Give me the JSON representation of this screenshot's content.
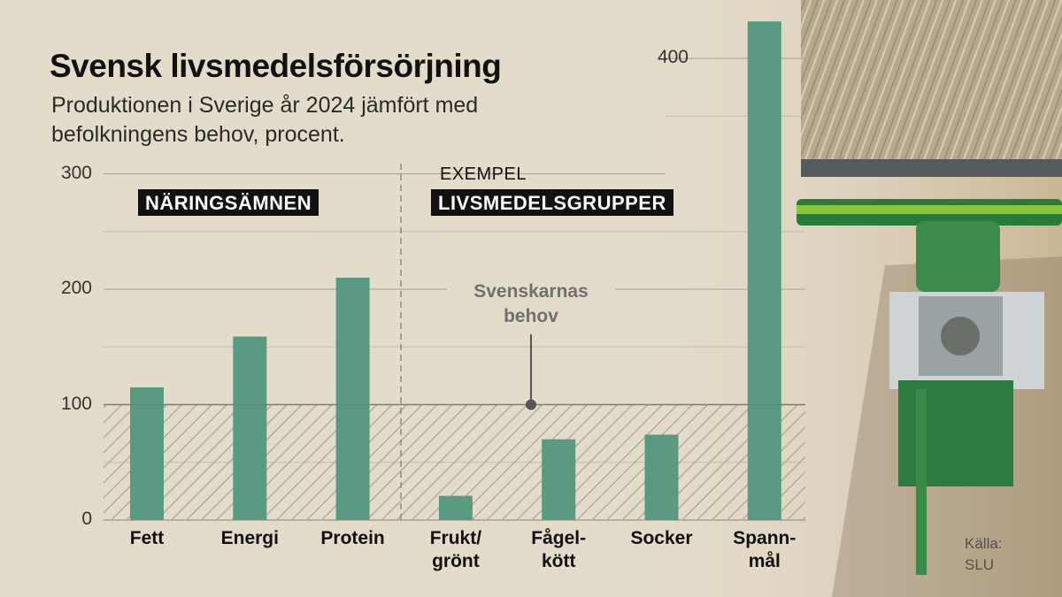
{
  "title": "Svensk livsmedelsförsörjning",
  "subtitle": "Produktionen i Sverige år 2024 jämfört med befolkningens behov, procent.",
  "source": "Källa:\nSLU",
  "section_labels": {
    "nutrients": "NÄRINGSÄMNEN",
    "example": "EXEMPEL",
    "food_groups": "LIVSMEDELSGRUPPER"
  },
  "annotation": {
    "text": "Svenskarnas\nbehov",
    "value": 100
  },
  "colors": {
    "bar": "#5a9a82",
    "background": "#e4dccb"
  },
  "chart_data": {
    "type": "bar",
    "title": "Svensk livsmedelsförsörjning",
    "subtitle": "Produktionen i Sverige år 2024 jämfört med befolkningens behov, procent.",
    "categories": [
      "Fett",
      "Energi",
      "Protein",
      "Frukt/\ngrönt",
      "Fågel-\nkött",
      "Socker",
      "Spann-\nmål"
    ],
    "values": [
      115,
      159,
      210,
      21,
      70,
      74,
      432
    ],
    "yticks": [
      0,
      100,
      200,
      300,
      400
    ],
    "ylim": [
      0,
      440
    ],
    "grid": true,
    "reference_line": 100
  }
}
